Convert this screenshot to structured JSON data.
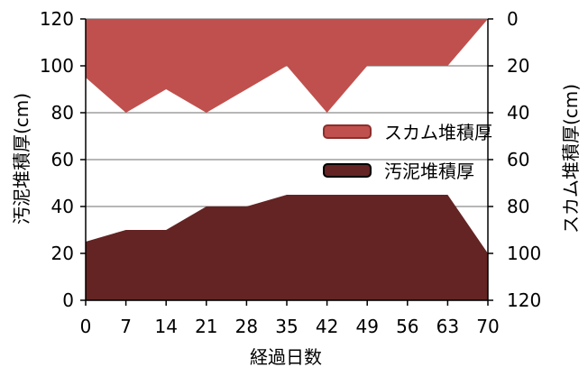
{
  "chart_data": {
    "type": "area",
    "xlabel": "経過日数",
    "ylabel_left": "汚泥堆積厚(cm)",
    "ylabel_right": "スカム堆積厚(cm)",
    "x": [
      0,
      7,
      14,
      21,
      28,
      35,
      42,
      49,
      56,
      63,
      70
    ],
    "x_ticks": [
      "0",
      "7",
      "14",
      "21",
      "28",
      "35",
      "42",
      "49",
      "56",
      "63",
      "70"
    ],
    "ylim_left": [
      0,
      120
    ],
    "ylim_right": [
      120,
      0
    ],
    "y_ticks_left": [
      "0",
      "20",
      "40",
      "60",
      "80",
      "100",
      "120"
    ],
    "y_ticks_right": [
      "0",
      "20",
      "40",
      "60",
      "80",
      "100",
      "120"
    ],
    "grid": true,
    "legend_position": "right",
    "series": [
      {
        "name": "スカム堆積厚",
        "axis": "right",
        "color": "#c0504d",
        "values": [
          25,
          40,
          30,
          40,
          30,
          20,
          40,
          20,
          20,
          20,
          0
        ]
      },
      {
        "name": "汚泥堆積厚",
        "axis": "left",
        "color": "#632423",
        "values": [
          25,
          30,
          30,
          40,
          40,
          45,
          45,
          45,
          45,
          45,
          20
        ]
      }
    ]
  }
}
